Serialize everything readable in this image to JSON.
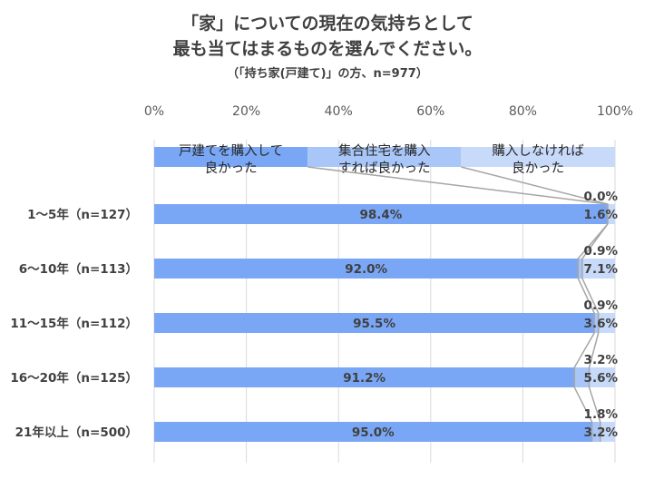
{
  "chart_data": {
    "type": "bar",
    "orientation": "horizontal-stacked-100",
    "title": [
      "「家」についての現在の気持ちとして",
      "最も当てはまるものを選んでください。"
    ],
    "subtitle": "（「持ち家(戸建て)」の方、n=977）",
    "xlim": [
      0,
      100
    ],
    "x_ticks": [
      "0%",
      "20%",
      "40%",
      "60%",
      "80%",
      "100%"
    ],
    "grid": true,
    "legend_position": "top-inline",
    "categories": [
      "1～5年（n=127）",
      "6～10年（n=113）",
      "11～15年（n=112）",
      "16～20年（n=125）",
      "21年以上（n=500）"
    ],
    "series": [
      {
        "name": [
          "戸建てを購入して",
          "良かった"
        ],
        "color": "#7aa7f5",
        "values": [
          98.4,
          92.0,
          95.5,
          91.2,
          95.0
        ],
        "labels": [
          "98.4%",
          "92.0%",
          "95.5%",
          "91.2%",
          "95.0%"
        ]
      },
      {
        "name": [
          "集合住宅を購入",
          "すれば良かった"
        ],
        "color": "#a8c6f7",
        "values": [
          0.0,
          0.9,
          0.9,
          3.2,
          1.8
        ],
        "labels": [
          "0.0%",
          "0.9%",
          "0.9%",
          "3.2%",
          "1.8%"
        ]
      },
      {
        "name": [
          "購入しなければ",
          "良かった"
        ],
        "color": "#c8daf9",
        "values": [
          1.6,
          7.1,
          3.6,
          5.6,
          3.2
        ],
        "labels": [
          "1.6%",
          "7.1%",
          "3.6%",
          "5.6%",
          "3.2%"
        ]
      }
    ],
    "legend_bar": {
      "values": [
        33.3,
        33.3,
        33.4
      ]
    }
  }
}
